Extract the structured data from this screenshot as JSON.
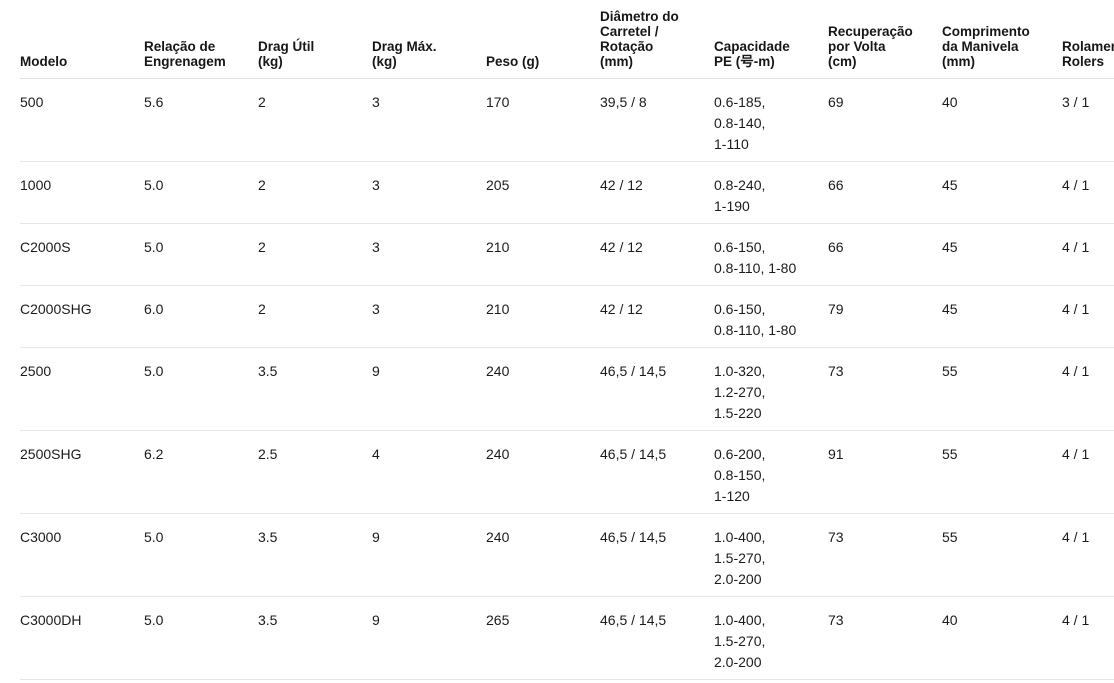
{
  "table": {
    "columns": [
      {
        "id": "modelo",
        "label": [
          "Modelo"
        ]
      },
      {
        "id": "relacao",
        "label": [
          "Relação de",
          "Engrenagem"
        ]
      },
      {
        "id": "drag_util",
        "label": [
          "Drag Útil",
          "(kg)"
        ]
      },
      {
        "id": "drag_max",
        "label": [
          "Drag Máx.",
          "(kg)"
        ]
      },
      {
        "id": "peso",
        "label": [
          "Peso (g)"
        ]
      },
      {
        "id": "diametro",
        "label": [
          "Diâmetro do",
          "Carretel /",
          "Rotação",
          "(mm)"
        ]
      },
      {
        "id": "capacidade",
        "label": [
          "Capacidade",
          "PE (号-m)"
        ]
      },
      {
        "id": "recuperacao",
        "label": [
          "Recuperação",
          "por Volta",
          "(cm)"
        ]
      },
      {
        "id": "comprimento",
        "label": [
          "Comprimento",
          "da Manivela",
          "(mm)"
        ]
      },
      {
        "id": "rolamentos",
        "label": [
          "Rolamentos",
          "Rolers"
        ]
      }
    ],
    "rows": [
      {
        "modelo": "500",
        "relacao": "5.6",
        "drag_util": "2",
        "drag_max": "3",
        "peso": "170",
        "diametro": "39,5 / 8",
        "capacidade": [
          "0.6-185,",
          "0.8-140,",
          "1-110"
        ],
        "recuperacao": "69",
        "comprimento": "40",
        "rolamentos": "3 / 1"
      },
      {
        "modelo": "1000",
        "relacao": "5.0",
        "drag_util": "2",
        "drag_max": "3",
        "peso": "205",
        "diametro": "42 / 12",
        "capacidade": [
          "0.8-240,",
          "1-190"
        ],
        "recuperacao": "66",
        "comprimento": "45",
        "rolamentos": "4 / 1"
      },
      {
        "modelo": "C2000S",
        "relacao": "5.0",
        "drag_util": "2",
        "drag_max": "3",
        "peso": "210",
        "diametro": "42 / 12",
        "capacidade": [
          "0.6-150,",
          "0.8-110, 1-80"
        ],
        "recuperacao": "66",
        "comprimento": "45",
        "rolamentos": "4 / 1"
      },
      {
        "modelo": "C2000SHG",
        "relacao": "6.0",
        "drag_util": "2",
        "drag_max": "3",
        "peso": "210",
        "diametro": "42 / 12",
        "capacidade": [
          "0.6-150,",
          "0.8-110, 1-80"
        ],
        "recuperacao": "79",
        "comprimento": "45",
        "rolamentos": "4 / 1"
      },
      {
        "modelo": "2500",
        "relacao": "5.0",
        "drag_util": "3.5",
        "drag_max": "9",
        "peso": "240",
        "diametro": "46,5 / 14,5",
        "capacidade": [
          "1.0-320,",
          "1.2-270,",
          "1.5-220"
        ],
        "recuperacao": "73",
        "comprimento": "55",
        "rolamentos": "4 / 1"
      },
      {
        "modelo": "2500SHG",
        "relacao": "6.2",
        "drag_util": "2.5",
        "drag_max": "4",
        "peso": "240",
        "diametro": "46,5 / 14,5",
        "capacidade": [
          "0.6-200,",
          "0.8-150,",
          "1-120"
        ],
        "recuperacao": "91",
        "comprimento": "55",
        "rolamentos": "4 / 1"
      },
      {
        "modelo": "C3000",
        "relacao": "5.0",
        "drag_util": "3.5",
        "drag_max": "9",
        "peso": "240",
        "diametro": "46,5 / 14,5",
        "capacidade": [
          "1.0-400,",
          "1.5-270,",
          "2.0-200"
        ],
        "recuperacao": "73",
        "comprimento": "55",
        "rolamentos": "4 / 1"
      },
      {
        "modelo": "C3000DH",
        "relacao": "5.0",
        "drag_util": "3.5",
        "drag_max": "9",
        "peso": "265",
        "diametro": "46,5 / 14,5",
        "capacidade": [
          "1.0-400,",
          "1.5-270,",
          "2.0-200"
        ],
        "recuperacao": "73",
        "comprimento": "40",
        "rolamentos": "4 / 1"
      }
    ]
  }
}
